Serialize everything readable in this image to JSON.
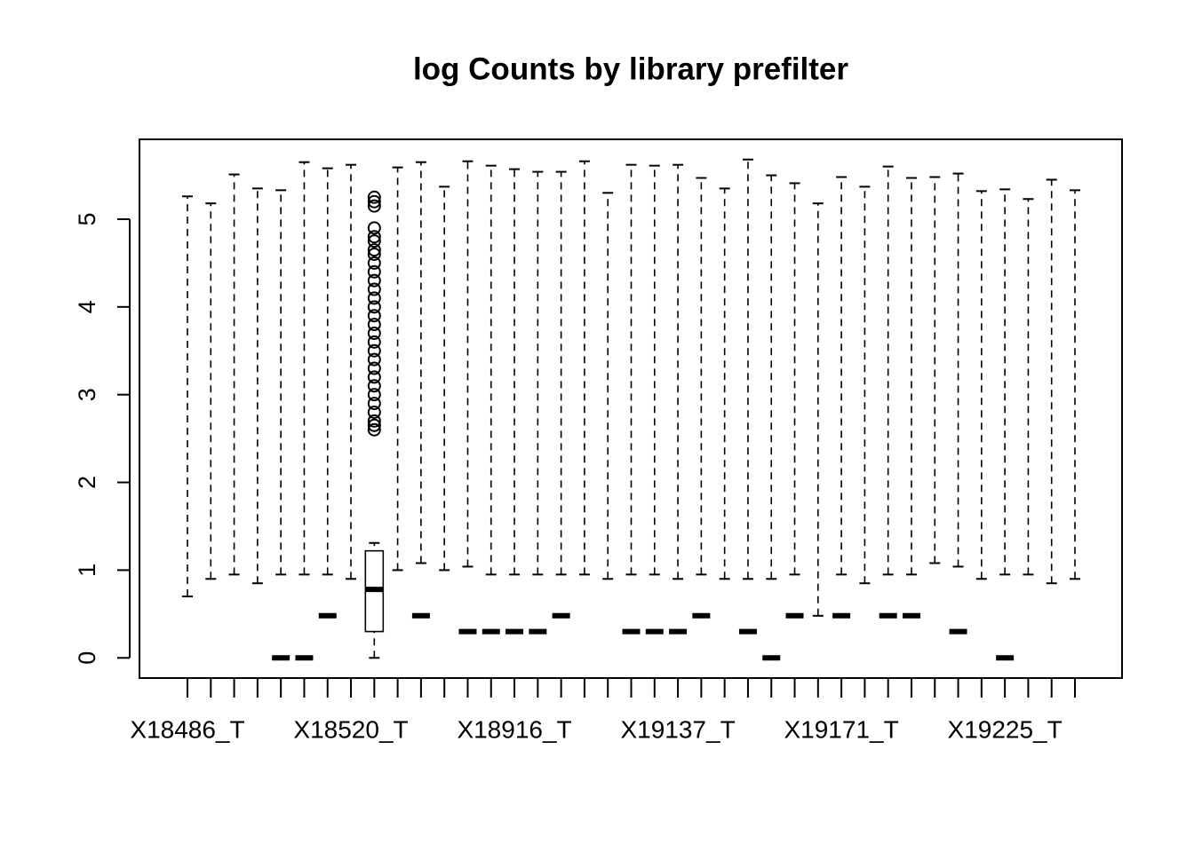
{
  "chart_data": {
    "type": "boxplot",
    "title": "log Counts by library prefilter",
    "categories": [
      "X18486_T",
      null,
      null,
      null,
      null,
      null,
      null,
      "X18520_T",
      null,
      null,
      null,
      null,
      null,
      null,
      "X18916_T",
      null,
      null,
      null,
      null,
      null,
      null,
      "X19137_T",
      null,
      null,
      null,
      null,
      null,
      null,
      "X19171_T",
      null,
      null,
      null,
      null,
      null,
      null,
      "X19225_T",
      null,
      null,
      null
    ],
    "whisker_low": [
      0.7,
      0.9,
      0.95,
      0.85,
      0.95,
      0.95,
      0.95,
      0.9,
      0,
      1.0,
      1.08,
      1.0,
      1.04,
      0.95,
      0.95,
      0.95,
      0.95,
      0.95,
      0.9,
      0.95,
      0.95,
      0.9,
      0.95,
      0.9,
      0.9,
      0.9,
      0.95,
      0.48,
      0.95,
      0.85,
      0.95,
      0.95,
      1.08,
      1.04,
      0.9,
      0.95,
      0.95,
      0.85,
      0.9
    ],
    "q1": [
      null,
      null,
      null,
      null,
      0,
      0,
      0.48,
      null,
      0.3,
      null,
      0.48,
      null,
      0.3,
      0.3,
      0.3,
      0.3,
      0.48,
      null,
      null,
      0.3,
      0.3,
      0.3,
      0.48,
      null,
      0.3,
      0,
      0.48,
      null,
      0.48,
      null,
      0.48,
      0.48,
      null,
      0.3,
      null,
      0,
      null,
      null,
      null
    ],
    "median": [
      null,
      null,
      null,
      null,
      0,
      0,
      0.48,
      null,
      0.78,
      null,
      0.48,
      null,
      0.3,
      0.3,
      0.3,
      0.3,
      0.48,
      null,
      null,
      0.3,
      0.3,
      0.3,
      0.48,
      null,
      0.3,
      0,
      0.48,
      null,
      0.48,
      null,
      0.48,
      0.48,
      null,
      0.3,
      null,
      0,
      null,
      null,
      null
    ],
    "q3": [
      null,
      null,
      null,
      null,
      0,
      0,
      0.48,
      null,
      1.22,
      null,
      0.48,
      null,
      0.3,
      0.3,
      0.3,
      0.3,
      0.48,
      null,
      null,
      0.3,
      0.3,
      0.3,
      0.48,
      null,
      0.3,
      0,
      0.48,
      null,
      0.48,
      null,
      0.48,
      0.48,
      null,
      0.3,
      null,
      0,
      null,
      null,
      null
    ],
    "whisker_high": [
      5.26,
      5.18,
      5.51,
      5.35,
      5.33,
      5.65,
      5.58,
      5.62,
      1.31,
      5.59,
      5.65,
      5.37,
      5.66,
      5.61,
      5.57,
      5.54,
      5.54,
      5.66,
      5.3,
      5.62,
      5.61,
      5.62,
      5.47,
      5.35,
      5.68,
      5.5,
      5.41,
      5.18,
      5.48,
      5.37,
      5.6,
      5.47,
      5.48,
      5.52,
      5.32,
      5.34,
      5.23,
      5.45,
      5.33
    ],
    "outliers": [
      [],
      [],
      [],
      [],
      [],
      [],
      [],
      [],
      [
        2.6,
        2.65,
        2.7,
        2.8,
        2.9,
        3.0,
        3.1,
        3.2,
        3.3,
        3.4,
        3.5,
        3.6,
        3.7,
        3.8,
        3.9,
        4.0,
        4.1,
        4.2,
        4.3,
        4.4,
        4.5,
        4.6,
        4.65,
        4.75,
        4.8,
        4.9,
        5.15,
        5.2,
        5.25
      ],
      [],
      [],
      [],
      [],
      [],
      [],
      [],
      [],
      [],
      [],
      [],
      [],
      [],
      [],
      [],
      [],
      [],
      [],
      [],
      [],
      [],
      [],
      [],
      [],
      [],
      [],
      [],
      [],
      [],
      []
    ],
    "ylim": [
      -0.23,
      5.91
    ],
    "yticks": [
      0,
      1,
      2,
      3,
      4,
      5
    ],
    "color": "#000000"
  }
}
